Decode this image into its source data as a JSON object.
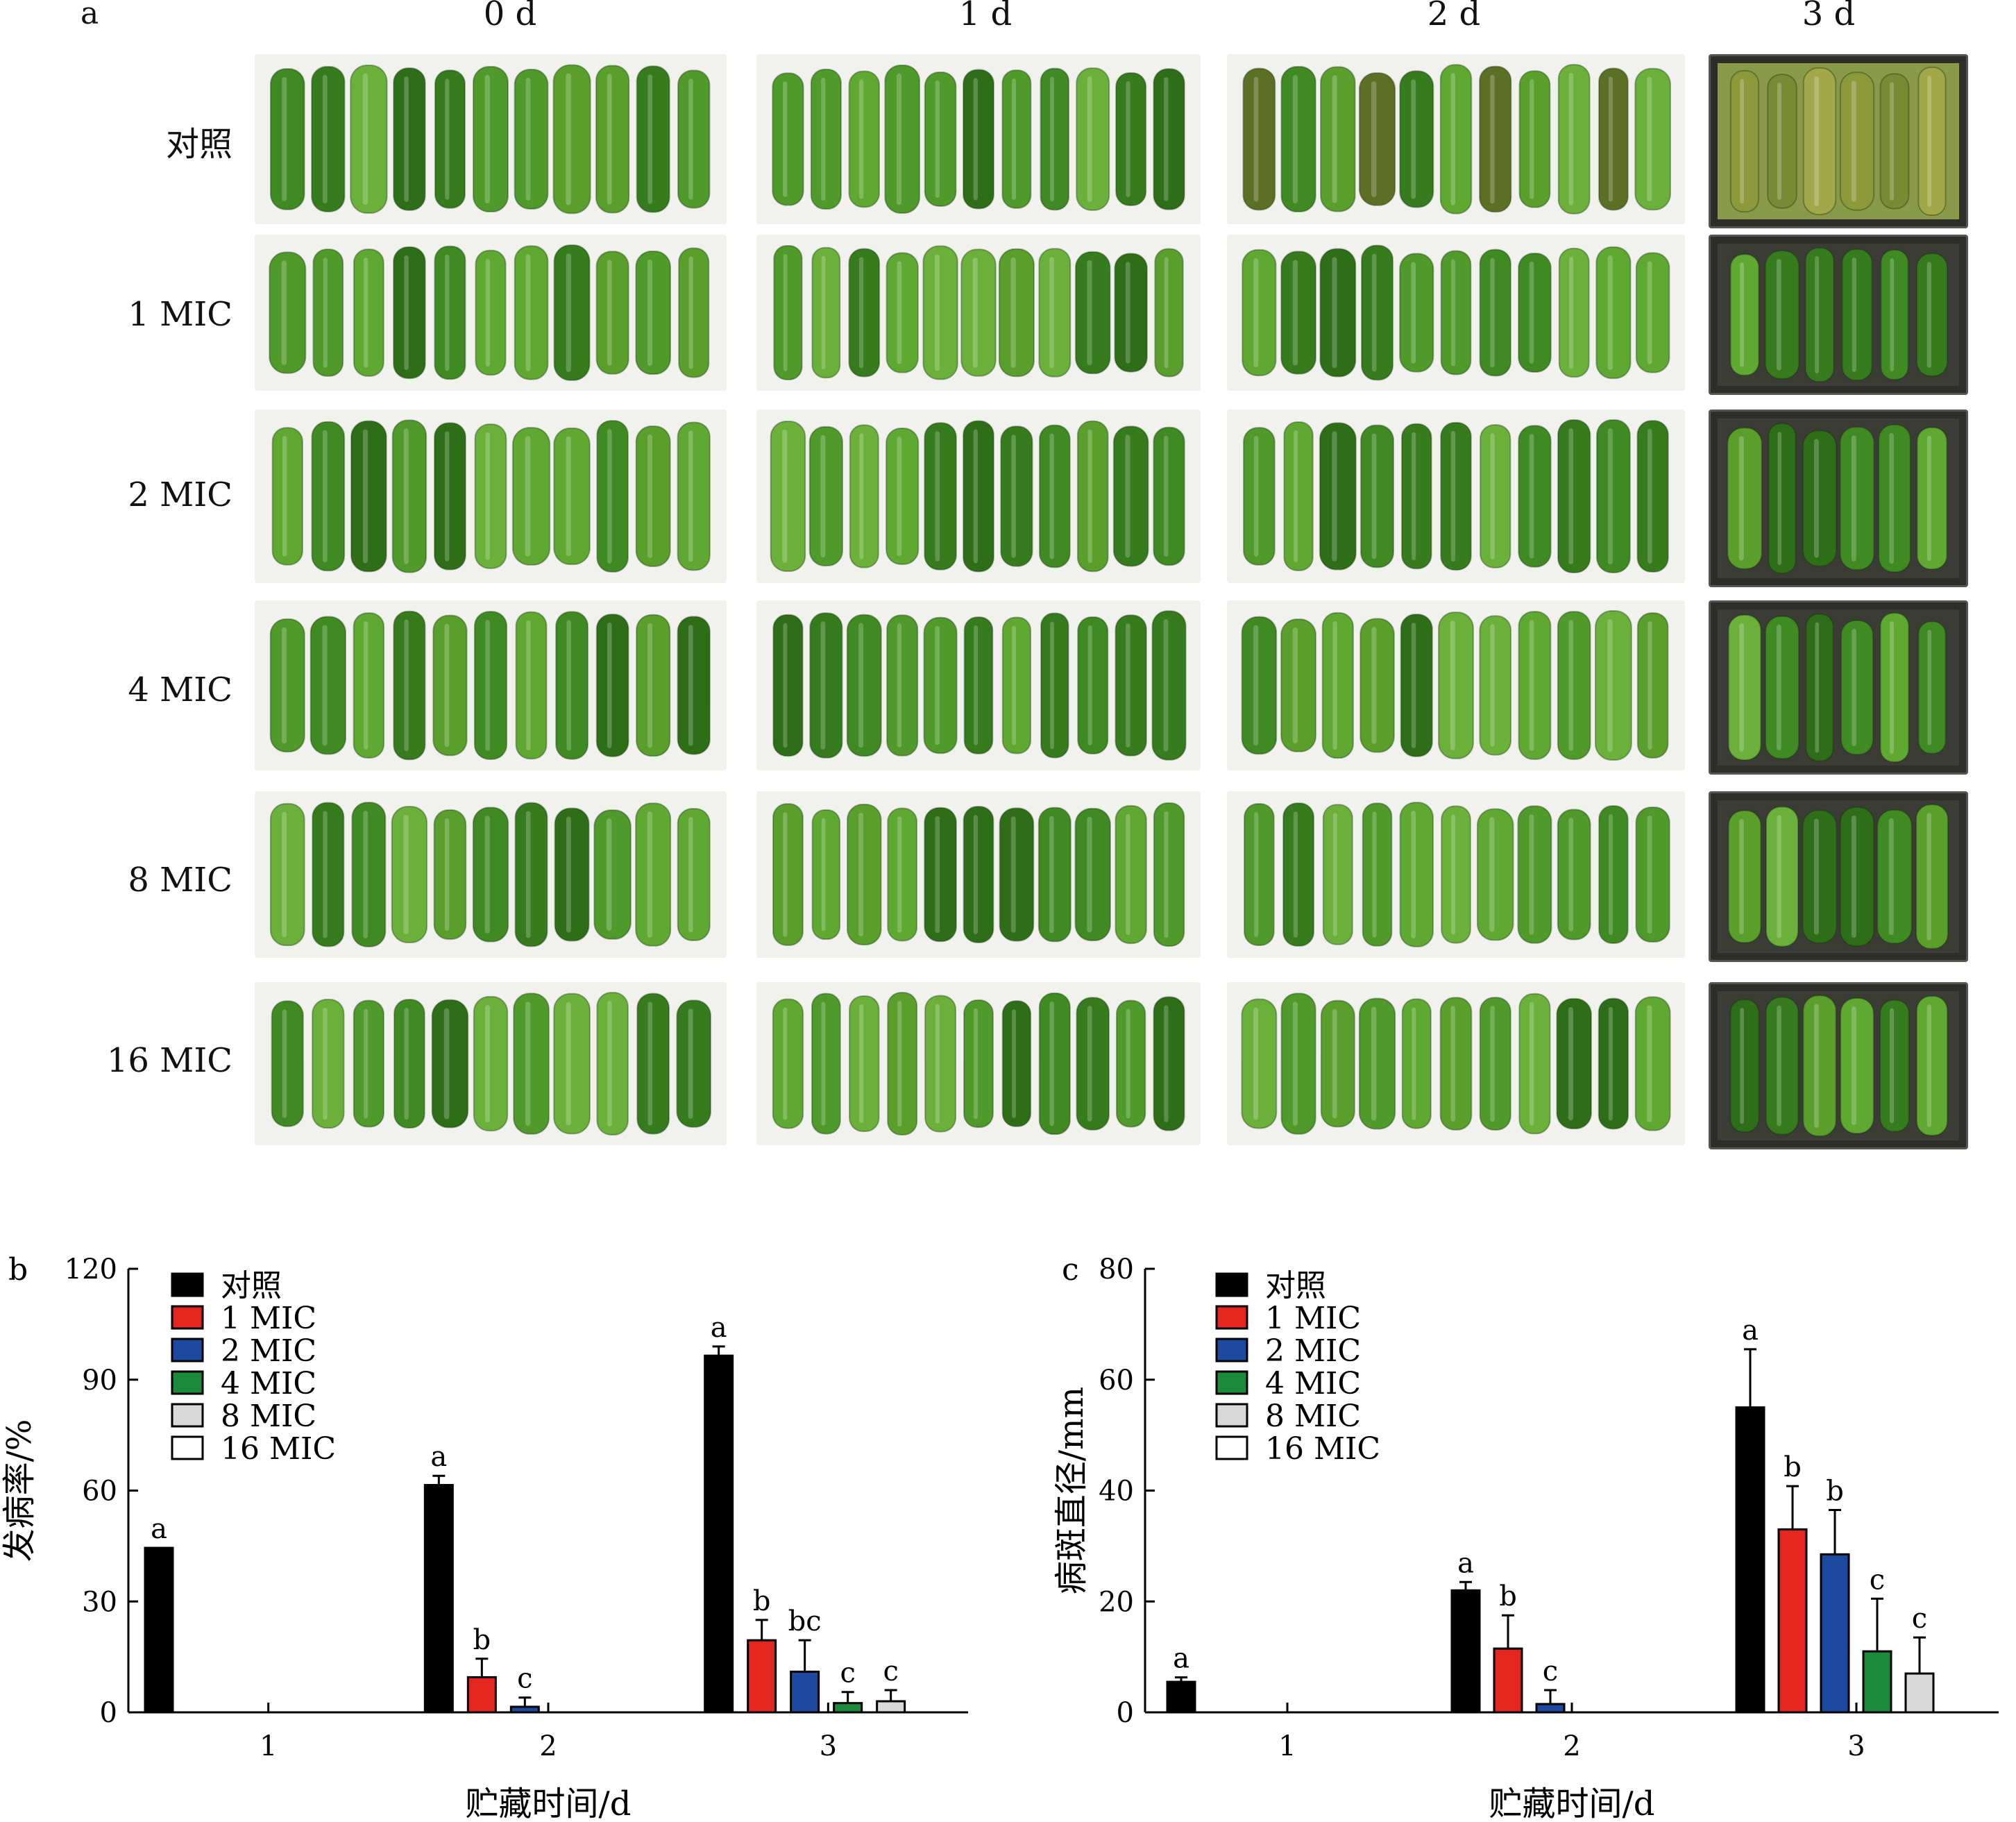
{
  "panel_a": {
    "letter": "a",
    "columns": [
      "0 d",
      "1 d",
      "2 d",
      "3 d"
    ],
    "rows": [
      "对照",
      "1 MIC",
      "2 MIC",
      "4 MIC",
      "8 MIC",
      "16 MIC"
    ]
  },
  "colors": {
    "对照": "#000000",
    "1 MIC": "#e52520",
    "2 MIC": "#1d4aa0",
    "4 MIC": "#1b8a3c",
    "8 MIC": "#d9d9d9",
    "16 MIC": "#ffffff"
  },
  "chart_data": [
    {
      "panel": "b",
      "type": "bar",
      "xlabel": "贮藏时间/d",
      "ylabel": "发病率/%",
      "categories": [
        "1",
        "2",
        "3"
      ],
      "ylim": [
        0,
        120
      ],
      "yticks": [
        0,
        30,
        60,
        90,
        120
      ],
      "legend_position": "top-left",
      "series": [
        {
          "name": "对照",
          "values": [
            44.5,
            61.5,
            96.5
          ],
          "errors": [
            0,
            2.5,
            2.5
          ],
          "letters": [
            "a",
            "a",
            "a"
          ]
        },
        {
          "name": "1 MIC",
          "values": [
            0,
            9.5,
            19.5
          ],
          "errors": [
            0,
            5,
            5.5
          ],
          "letters": [
            "",
            "b",
            "b"
          ]
        },
        {
          "name": "2 MIC",
          "values": [
            0,
            1.5,
            11
          ],
          "errors": [
            0,
            2.5,
            8.5
          ],
          "letters": [
            "",
            "c",
            "bc"
          ]
        },
        {
          "name": "4 MIC",
          "values": [
            0,
            0,
            2.5
          ],
          "errors": [
            0,
            0,
            3
          ],
          "letters": [
            "",
            "",
            "c"
          ]
        },
        {
          "name": "8 MIC",
          "values": [
            0,
            0,
            3
          ],
          "errors": [
            0,
            0,
            3
          ],
          "letters": [
            "",
            "",
            "c"
          ]
        },
        {
          "name": "16 MIC",
          "values": [
            0,
            0,
            0
          ],
          "errors": [
            0,
            0,
            0
          ],
          "letters": [
            "",
            "",
            ""
          ]
        }
      ]
    },
    {
      "panel": "c",
      "type": "bar",
      "xlabel": "贮藏时间/d",
      "ylabel": "病斑直径/mm",
      "categories": [
        "1",
        "2",
        "3"
      ],
      "ylim": [
        0,
        80
      ],
      "yticks": [
        0,
        20,
        40,
        60,
        80
      ],
      "legend_position": "top-left",
      "series": [
        {
          "name": "对照",
          "values": [
            5.5,
            22,
            55
          ],
          "errors": [
            0.8,
            1.5,
            10.5
          ],
          "letters": [
            "a",
            "a",
            "a"
          ]
        },
        {
          "name": "1 MIC",
          "values": [
            0,
            11.5,
            33
          ],
          "errors": [
            0,
            6,
            7.8
          ],
          "letters": [
            "",
            "b",
            "b"
          ]
        },
        {
          "name": "2 MIC",
          "values": [
            0,
            1.5,
            28.5
          ],
          "errors": [
            0,
            2.5,
            8
          ],
          "letters": [
            "",
            "c",
            "b"
          ]
        },
        {
          "name": "4 MIC",
          "values": [
            0,
            0,
            11
          ],
          "errors": [
            0,
            0,
            9.5
          ],
          "letters": [
            "",
            "",
            "c"
          ]
        },
        {
          "name": "8 MIC",
          "values": [
            0,
            0,
            7
          ],
          "errors": [
            0,
            0,
            6.5
          ],
          "letters": [
            "",
            "",
            "c"
          ]
        },
        {
          "name": "16 MIC",
          "values": [
            0,
            0,
            0
          ],
          "errors": [
            0,
            0,
            0
          ],
          "letters": [
            "",
            "",
            ""
          ]
        }
      ]
    }
  ]
}
